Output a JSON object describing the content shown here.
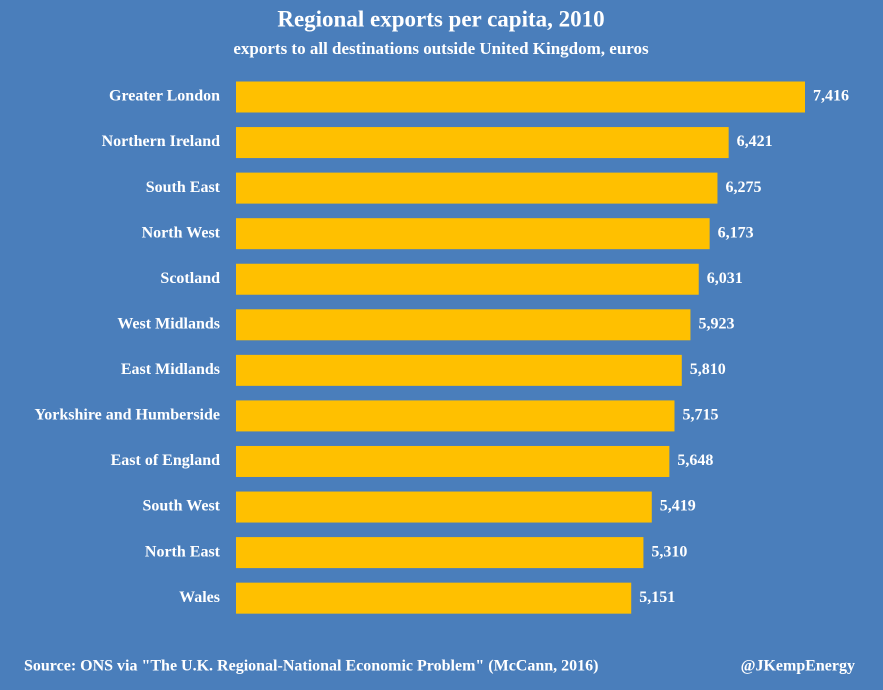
{
  "chart_data": {
    "type": "hbar",
    "title": "Regional exports per capita, 2010",
    "subtitle": "exports to all destinations outside United Kingdom, euros",
    "categories": [
      "Greater London",
      "Northern Ireland",
      "South East",
      "North West",
      "Scotland",
      "West Midlands",
      "East Midlands",
      "Yorkshire and Humberside",
      "East of England",
      "South West",
      "North East",
      "Wales"
    ],
    "values": [
      7416,
      6421,
      6275,
      6173,
      6031,
      5923,
      5810,
      5715,
      5648,
      5419,
      5310,
      5151
    ],
    "value_labels": [
      "7,416",
      "6,421",
      "6,275",
      "6,173",
      "6,031",
      "5,923",
      "5,810",
      "5,715",
      "5,648",
      "5,419",
      "5,310",
      "5,151"
    ],
    "color": "#ffc000",
    "source": "Source: ONS via \"The U.K. Regional-National Economic Problem\" (McCann, 2016)",
    "credit": "@JKempEnergy"
  }
}
